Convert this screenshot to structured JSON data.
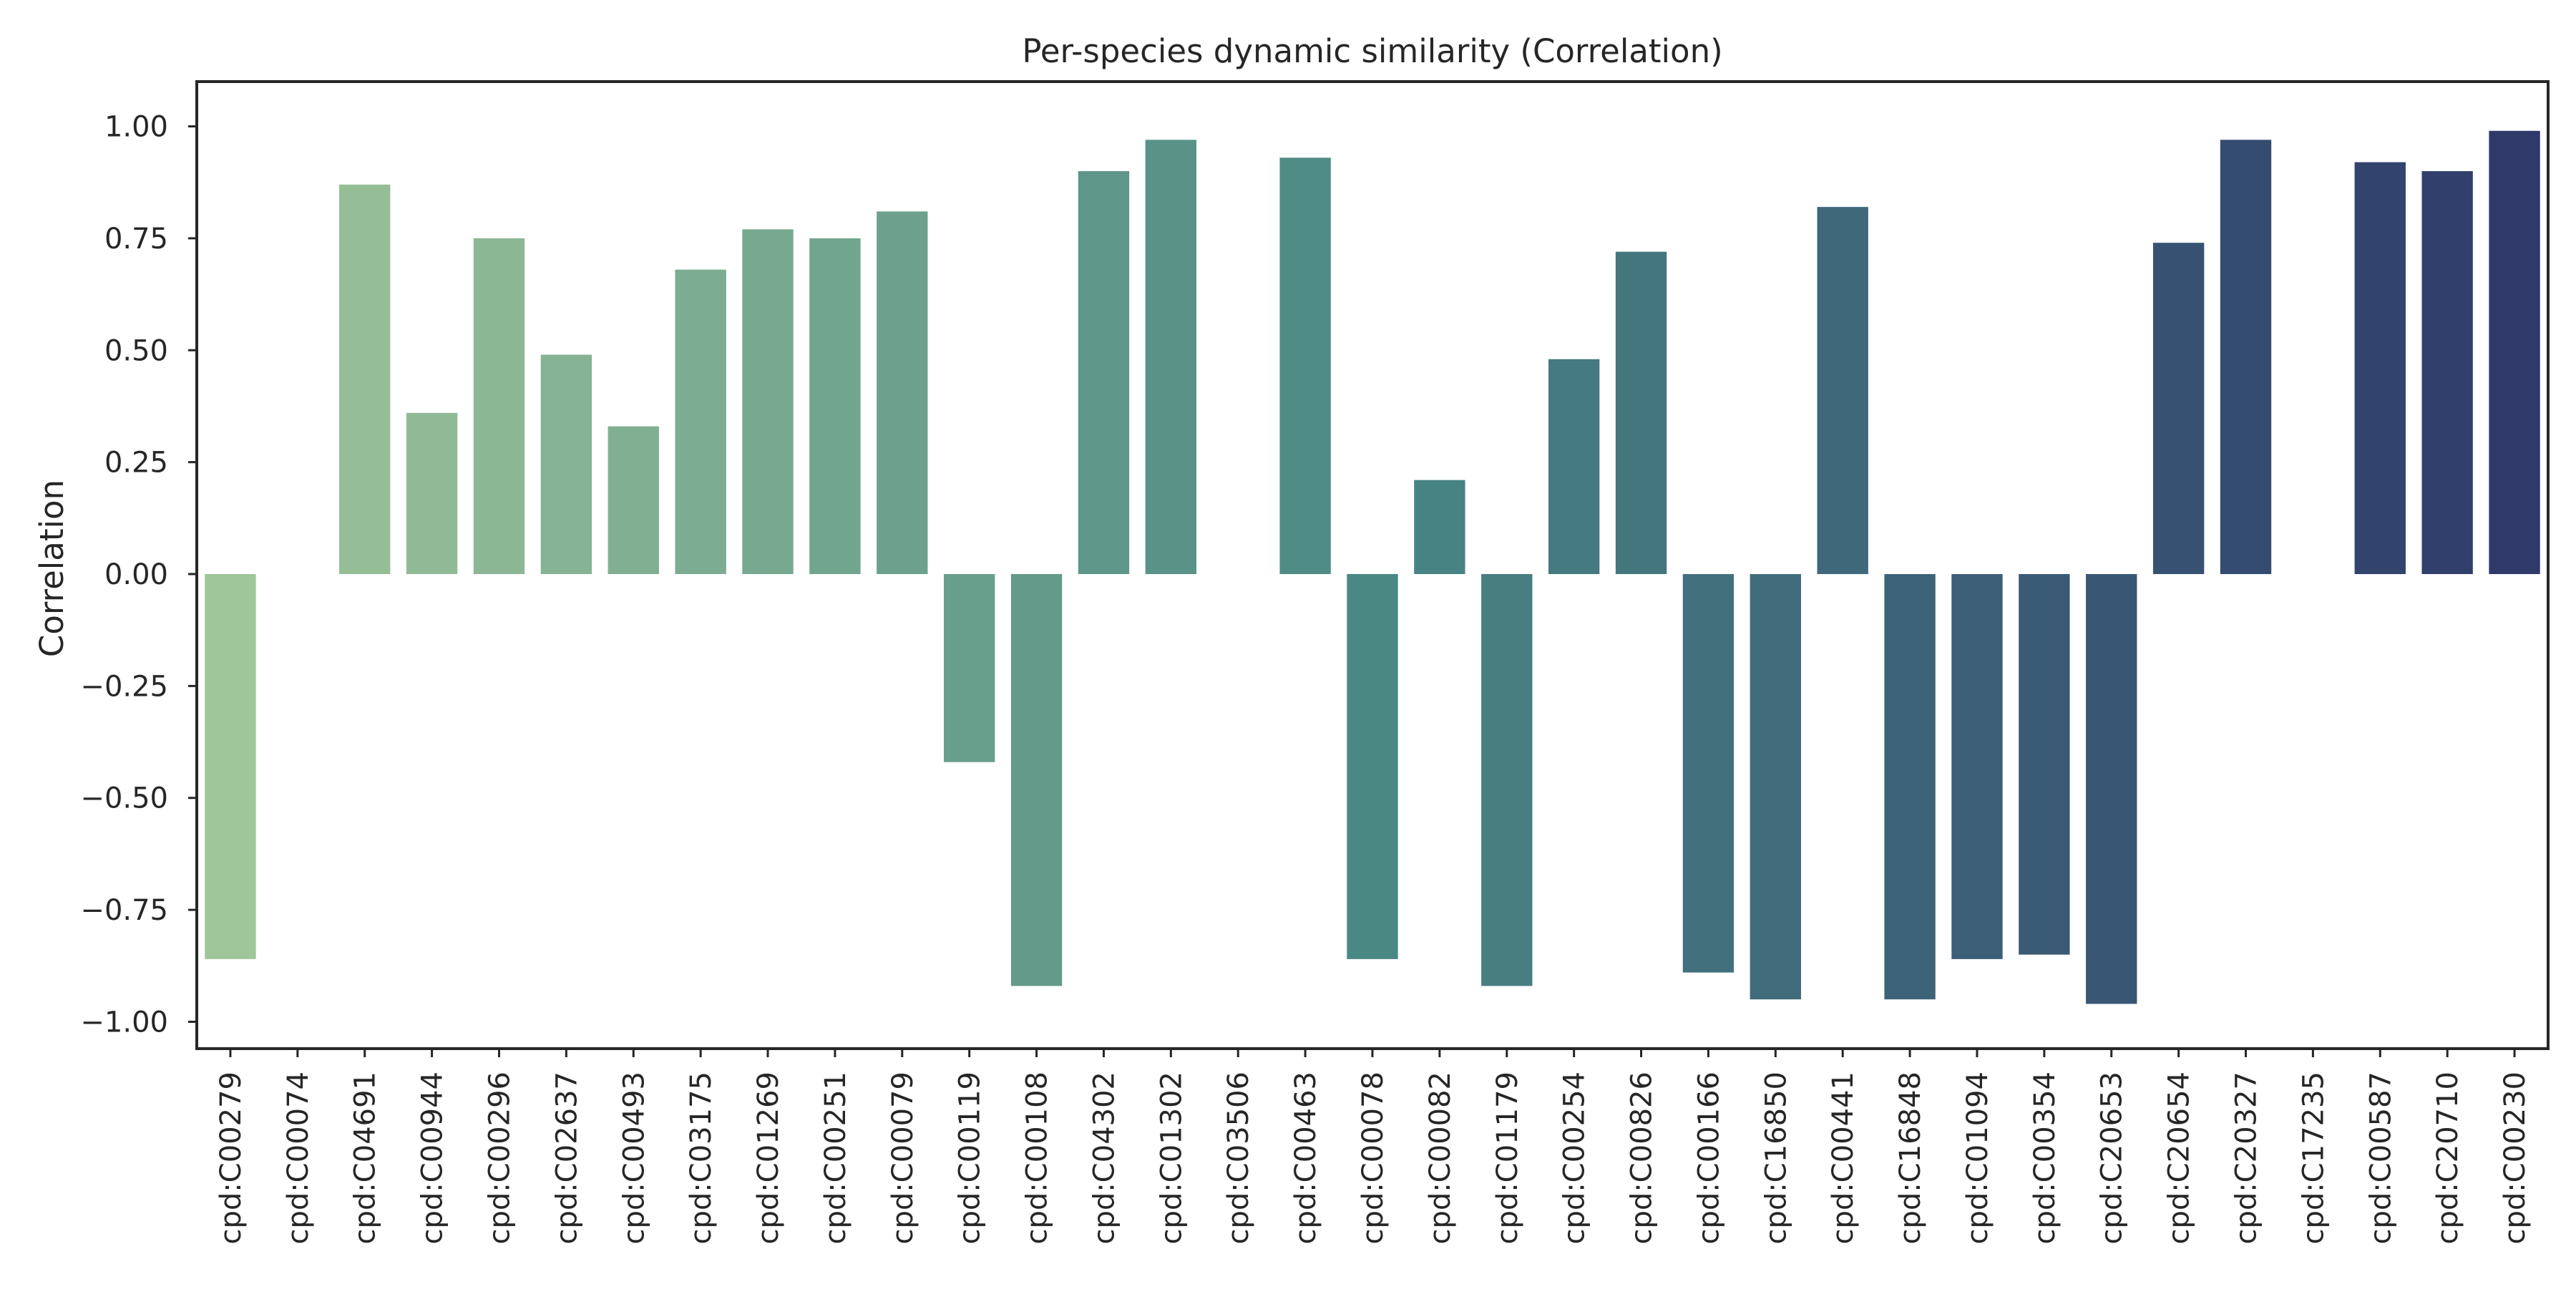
{
  "chart_data": {
    "type": "bar",
    "title": "Per-species dynamic similarity (Correlation)",
    "xlabel": "",
    "ylabel": "Correlation",
    "ylim": [
      -1.06,
      1.1
    ],
    "yticks": [
      -1.0,
      -0.75,
      -0.5,
      -0.25,
      0.0,
      0.25,
      0.5,
      0.75,
      1.0
    ],
    "ytick_labels": [
      "−1.00",
      "−0.75",
      "−0.50",
      "−0.25",
      "0.00",
      "0.25",
      "0.50",
      "0.75",
      "1.00"
    ],
    "grid": false,
    "legend": "none",
    "palette": "crest",
    "colors": [
      "#9fc59a",
      "#2f3a6b"
    ],
    "categories": [
      "cpd:C00279",
      "cpd:C00074",
      "cpd:C04691",
      "cpd:C00944",
      "cpd:C00296",
      "cpd:C02637",
      "cpd:C00493",
      "cpd:C03175",
      "cpd:C01269",
      "cpd:C00251",
      "cpd:C00079",
      "cpd:C00119",
      "cpd:C00108",
      "cpd:C04302",
      "cpd:C01302",
      "cpd:C03506",
      "cpd:C00463",
      "cpd:C00078",
      "cpd:C00082",
      "cpd:C01179",
      "cpd:C00254",
      "cpd:C00826",
      "cpd:C00166",
      "cpd:C16850",
      "cpd:C00441",
      "cpd:C16848",
      "cpd:C01094",
      "cpd:C00354",
      "cpd:C20653",
      "cpd:C20654",
      "cpd:C20327",
      "cpd:C17235",
      "cpd:C00587",
      "cpd:C20710",
      "cpd:C00230"
    ],
    "values": [
      -0.86,
      0.0,
      0.87,
      0.36,
      0.75,
      0.49,
      0.33,
      0.68,
      0.77,
      0.75,
      0.81,
      -0.42,
      -0.92,
      0.9,
      0.97,
      0.0,
      0.93,
      -0.86,
      0.21,
      -0.92,
      0.48,
      0.72,
      -0.89,
      -0.95,
      0.82,
      -0.95,
      -0.86,
      -0.85,
      -0.96,
      0.74,
      0.97,
      0.0,
      0.92,
      0.9,
      0.99
    ]
  }
}
